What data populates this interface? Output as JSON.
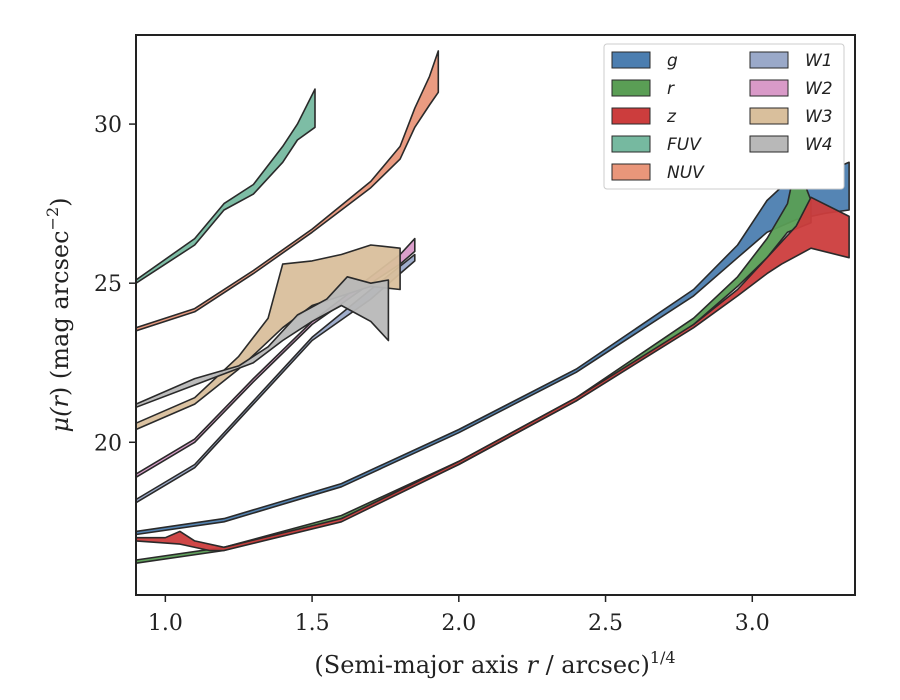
{
  "chart_data": {
    "type": "area",
    "xlabel_main": "(Semi-major axis ",
    "xlabel_var": "r",
    "xlabel_rest": " / arcsec)",
    "xlabel_exp": "1/4",
    "ylabel_main": "μ(",
    "ylabel_var": "r",
    "ylabel_rest": ") (mag arcsec",
    "ylabel_exp": "−2",
    "ylabel_close": ")",
    "xlim": [
      0.9,
      3.35
    ],
    "ylim": [
      32.8,
      15.2
    ],
    "y_inverted": true,
    "xticks": [
      1.0,
      1.5,
      2.0,
      2.5,
      3.0
    ],
    "xtick_labels": [
      "1.0",
      "1.5",
      "2.0",
      "2.5",
      "3.0"
    ],
    "yticks": [
      20,
      25,
      30
    ],
    "ytick_labels": [
      "20",
      "25",
      "30"
    ],
    "legend_position": "top-right",
    "legend_columns": 2,
    "series": [
      {
        "name": "g",
        "color": "#4c7eb0",
        "upper": [
          [
            0.9,
            17.1
          ],
          [
            1.2,
            17.5
          ],
          [
            1.6,
            18.6
          ],
          [
            2.0,
            20.3
          ],
          [
            2.4,
            22.2
          ],
          [
            2.8,
            24.6
          ],
          [
            2.95,
            25.8
          ],
          [
            3.05,
            26.6
          ],
          [
            3.15,
            27.0
          ],
          [
            3.25,
            27.2
          ],
          [
            3.33,
            27.3
          ]
        ],
        "lower": [
          [
            0.9,
            17.2
          ],
          [
            1.2,
            17.6
          ],
          [
            1.6,
            18.7
          ],
          [
            2.0,
            20.4
          ],
          [
            2.4,
            22.3
          ],
          [
            2.8,
            24.8
          ],
          [
            2.95,
            26.2
          ],
          [
            3.05,
            27.6
          ],
          [
            3.12,
            28.2
          ],
          [
            3.2,
            28.3
          ],
          [
            3.33,
            28.8
          ]
        ]
      },
      {
        "name": "r",
        "color": "#5a9e55",
        "upper": [
          [
            0.9,
            16.2
          ],
          [
            1.2,
            16.6
          ],
          [
            1.6,
            17.6
          ],
          [
            2.0,
            19.3
          ],
          [
            2.4,
            21.3
          ],
          [
            2.8,
            23.7
          ],
          [
            2.95,
            24.9
          ],
          [
            3.05,
            25.8
          ],
          [
            3.12,
            26.6
          ],
          [
            3.2,
            26.9
          ]
        ],
        "lower": [
          [
            0.9,
            16.3
          ],
          [
            1.2,
            16.7
          ],
          [
            1.6,
            17.7
          ],
          [
            2.0,
            19.4
          ],
          [
            2.4,
            21.4
          ],
          [
            2.8,
            23.9
          ],
          [
            2.95,
            25.2
          ],
          [
            3.05,
            26.4
          ],
          [
            3.12,
            27.5
          ],
          [
            3.15,
            28.8
          ],
          [
            3.2,
            27.6
          ]
        ]
      },
      {
        "name": "z",
        "color": "#cc3d3d",
        "upper": [
          [
            0.9,
            16.9
          ],
          [
            1.05,
            16.8
          ],
          [
            1.15,
            16.6
          ],
          [
            1.2,
            16.6
          ],
          [
            1.6,
            17.5
          ],
          [
            2.0,
            19.3
          ],
          [
            2.4,
            21.3
          ],
          [
            2.8,
            23.6
          ],
          [
            2.95,
            24.6
          ],
          [
            3.05,
            25.3
          ],
          [
            3.1,
            25.6
          ],
          [
            3.2,
            26.1
          ],
          [
            3.33,
            25.8
          ]
        ],
        "lower": [
          [
            0.9,
            17.0
          ],
          [
            1.0,
            17.0
          ],
          [
            1.05,
            17.2
          ],
          [
            1.1,
            16.9
          ],
          [
            1.2,
            16.7
          ],
          [
            1.6,
            17.6
          ],
          [
            2.0,
            19.4
          ],
          [
            2.4,
            21.4
          ],
          [
            2.8,
            23.7
          ],
          [
            2.95,
            24.8
          ],
          [
            3.05,
            25.8
          ],
          [
            3.15,
            26.8
          ],
          [
            3.2,
            27.7
          ],
          [
            3.33,
            27.1
          ]
        ]
      },
      {
        "name": "FUV",
        "color": "#76b9a0",
        "upper": [
          [
            0.9,
            25.0
          ],
          [
            1.1,
            26.2
          ],
          [
            1.2,
            27.3
          ],
          [
            1.3,
            27.8
          ],
          [
            1.4,
            28.8
          ],
          [
            1.45,
            29.5
          ],
          [
            1.51,
            29.9
          ]
        ],
        "lower": [
          [
            0.9,
            25.1
          ],
          [
            1.1,
            26.4
          ],
          [
            1.2,
            27.5
          ],
          [
            1.3,
            28.1
          ],
          [
            1.4,
            29.3
          ],
          [
            1.45,
            30.0
          ],
          [
            1.51,
            31.1
          ]
        ]
      },
      {
        "name": "NUV",
        "color": "#e9967a",
        "upper": [
          [
            0.9,
            23.5
          ],
          [
            1.1,
            24.1
          ],
          [
            1.3,
            25.3
          ],
          [
            1.5,
            26.6
          ],
          [
            1.7,
            28.0
          ],
          [
            1.8,
            28.9
          ],
          [
            1.85,
            29.9
          ],
          [
            1.9,
            30.6
          ],
          [
            1.93,
            31.0
          ]
        ],
        "lower": [
          [
            0.9,
            23.6
          ],
          [
            1.1,
            24.2
          ],
          [
            1.3,
            25.4
          ],
          [
            1.5,
            26.7
          ],
          [
            1.7,
            28.2
          ],
          [
            1.8,
            29.3
          ],
          [
            1.85,
            30.5
          ],
          [
            1.9,
            31.5
          ],
          [
            1.93,
            32.3
          ]
        ]
      },
      {
        "name": "W1",
        "color": "#9aa9c9",
        "upper": [
          [
            0.9,
            18.1
          ],
          [
            1.1,
            19.2
          ],
          [
            1.3,
            21.2
          ],
          [
            1.5,
            23.2
          ],
          [
            1.7,
            24.5
          ],
          [
            1.85,
            25.7
          ]
        ],
        "lower": [
          [
            0.9,
            18.2
          ],
          [
            1.1,
            19.3
          ],
          [
            1.3,
            21.3
          ],
          [
            1.5,
            23.3
          ],
          [
            1.7,
            24.8
          ],
          [
            1.85,
            25.9
          ]
        ]
      },
      {
        "name": "W2",
        "color": "#d99ac8",
        "upper": [
          [
            0.9,
            18.9
          ],
          [
            1.1,
            20.0
          ],
          [
            1.3,
            21.9
          ],
          [
            1.5,
            23.7
          ],
          [
            1.7,
            25.0
          ],
          [
            1.8,
            25.6
          ],
          [
            1.85,
            26.0
          ]
        ],
        "lower": [
          [
            0.9,
            19.0
          ],
          [
            1.1,
            20.1
          ],
          [
            1.3,
            22.0
          ],
          [
            1.5,
            23.8
          ],
          [
            1.7,
            25.2
          ],
          [
            1.8,
            25.9
          ],
          [
            1.85,
            26.4
          ]
        ]
      },
      {
        "name": "W3",
        "color": "#d9bf9c",
        "upper": [
          [
            0.9,
            20.4
          ],
          [
            1.1,
            21.2
          ],
          [
            1.25,
            22.3
          ],
          [
            1.4,
            23.6
          ],
          [
            1.5,
            24.3
          ],
          [
            1.6,
            24.6
          ],
          [
            1.7,
            24.9
          ],
          [
            1.8,
            24.8
          ]
        ],
        "lower": [
          [
            0.9,
            20.6
          ],
          [
            1.1,
            21.4
          ],
          [
            1.25,
            22.7
          ],
          [
            1.35,
            23.9
          ],
          [
            1.4,
            25.6
          ],
          [
            1.5,
            25.7
          ],
          [
            1.6,
            25.9
          ],
          [
            1.7,
            26.2
          ],
          [
            1.8,
            26.1
          ]
        ]
      },
      {
        "name": "W4",
        "color": "#b8b8b8",
        "upper": [
          [
            0.9,
            21.1
          ],
          [
            1.1,
            21.8
          ],
          [
            1.3,
            22.5
          ],
          [
            1.4,
            23.2
          ],
          [
            1.5,
            23.8
          ],
          [
            1.6,
            24.3
          ],
          [
            1.7,
            23.8
          ],
          [
            1.76,
            23.2
          ]
        ],
        "lower": [
          [
            0.9,
            21.2
          ],
          [
            1.1,
            22.0
          ],
          [
            1.25,
            22.4
          ],
          [
            1.35,
            23.0
          ],
          [
            1.45,
            24.0
          ],
          [
            1.55,
            24.5
          ],
          [
            1.62,
            25.2
          ],
          [
            1.7,
            25.0
          ],
          [
            1.76,
            25.1
          ]
        ]
      }
    ]
  }
}
